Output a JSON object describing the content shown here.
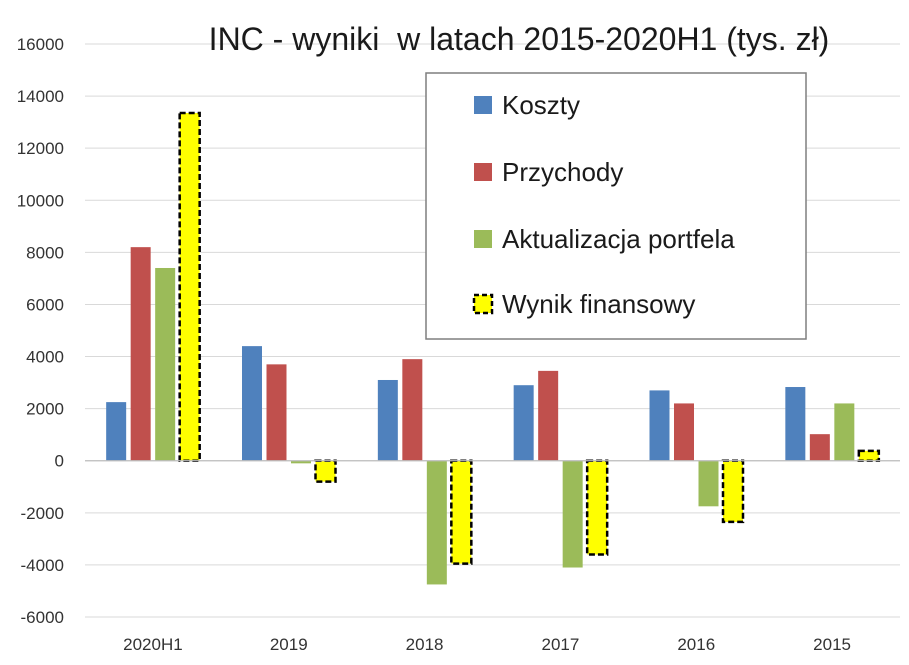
{
  "chart_data": {
    "type": "bar",
    "title": "INC - wyniki  w latach 2015-2020H1 (tys. zł)",
    "xlabel": "",
    "ylabel": "",
    "categories": [
      "2020H1",
      "2019",
      "2018",
      "2017",
      "2016",
      "2015"
    ],
    "ylim": [
      -6000,
      16000
    ],
    "yticks": [
      -6000,
      -4000,
      -2000,
      0,
      2000,
      4000,
      6000,
      8000,
      10000,
      12000,
      14000,
      16000
    ],
    "ytick_labels": [
      "-6000",
      "-4000",
      "-2000",
      "0",
      "2000",
      "4000",
      "6000",
      "8000",
      "10000",
      "12000",
      "14000",
      "16000"
    ],
    "grid": true,
    "legend_position": "top-right",
    "series": [
      {
        "name": "Koszty",
        "color": "#4f81bd",
        "style": "solid",
        "values": [
          2250,
          4400,
          3100,
          2900,
          2700,
          2830
        ]
      },
      {
        "name": "Przychody",
        "color": "#c0504d",
        "style": "solid",
        "values": [
          8200,
          3700,
          3900,
          3450,
          2200,
          1020
        ]
      },
      {
        "name": "Aktualizacja portfela",
        "color": "#9bbb59",
        "style": "solid",
        "values": [
          7400,
          -100,
          -4750,
          -4100,
          -1750,
          2200
        ]
      },
      {
        "name": "Wynik finansowy",
        "color": "#ffff00",
        "style": "dashed-outline",
        "values": [
          13350,
          -800,
          -3950,
          -3600,
          -2350,
          380
        ]
      }
    ]
  }
}
